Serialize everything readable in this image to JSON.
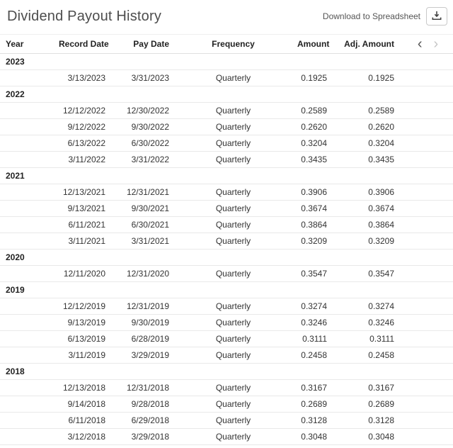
{
  "header": {
    "title": "Dividend Payout History",
    "download_label": "Download to Spreadsheet",
    "download_icon": "download-tray-icon"
  },
  "pager": {
    "prev_icon": "chevron-left-icon",
    "prev_glyph": "‹",
    "next_icon": "chevron-right-icon",
    "next_glyph": "›"
  },
  "table": {
    "columns": [
      "Year",
      "Record Date",
      "Pay Date",
      "Frequency",
      "Amount",
      "Adj. Amount"
    ],
    "groups": [
      {
        "year": "2023",
        "rows": [
          [
            "3/13/2023",
            "3/31/2023",
            "Quarterly",
            "0.1925",
            "0.1925"
          ]
        ]
      },
      {
        "year": "2022",
        "rows": [
          [
            "12/12/2022",
            "12/30/2022",
            "Quarterly",
            "0.2589",
            "0.2589"
          ],
          [
            "9/12/2022",
            "9/30/2022",
            "Quarterly",
            "0.2620",
            "0.2620"
          ],
          [
            "6/13/2022",
            "6/30/2022",
            "Quarterly",
            "0.3204",
            "0.3204"
          ],
          [
            "3/11/2022",
            "3/31/2022",
            "Quarterly",
            "0.3435",
            "0.3435"
          ]
        ]
      },
      {
        "year": "2021",
        "rows": [
          [
            "12/13/2021",
            "12/31/2021",
            "Quarterly",
            "0.3906",
            "0.3906"
          ],
          [
            "9/13/2021",
            "9/30/2021",
            "Quarterly",
            "0.3674",
            "0.3674"
          ],
          [
            "6/11/2021",
            "6/30/2021",
            "Quarterly",
            "0.3864",
            "0.3864"
          ],
          [
            "3/11/2021",
            "3/31/2021",
            "Quarterly",
            "0.3209",
            "0.3209"
          ]
        ]
      },
      {
        "year": "2020",
        "rows": [
          [
            "12/11/2020",
            "12/31/2020",
            "Quarterly",
            "0.3547",
            "0.3547"
          ]
        ]
      },
      {
        "year": "2019",
        "rows": [
          [
            "12/12/2019",
            "12/31/2019",
            "Quarterly",
            "0.3274",
            "0.3274"
          ],
          [
            "9/13/2019",
            "9/30/2019",
            "Quarterly",
            "0.3246",
            "0.3246"
          ],
          [
            "6/13/2019",
            "6/28/2019",
            "Quarterly",
            "0.3111",
            "0.3111"
          ],
          [
            "3/11/2019",
            "3/29/2019",
            "Quarterly",
            "0.2458",
            "0.2458"
          ]
        ]
      },
      {
        "year": "2018",
        "rows": [
          [
            "12/13/2018",
            "12/31/2018",
            "Quarterly",
            "0.3167",
            "0.3167"
          ],
          [
            "9/14/2018",
            "9/28/2018",
            "Quarterly",
            "0.2689",
            "0.2689"
          ],
          [
            "6/11/2018",
            "6/29/2018",
            "Quarterly",
            "0.3128",
            "0.3128"
          ],
          [
            "3/12/2018",
            "3/29/2018",
            "Quarterly",
            "0.3048",
            "0.3048"
          ]
        ]
      }
    ]
  },
  "colors": {
    "title_text": "#4d4d4d",
    "body_text": "#333333",
    "row_border": "#e9e9e9",
    "chevron_active": "#555555",
    "chevron_disabled": "#c6c6c6"
  }
}
